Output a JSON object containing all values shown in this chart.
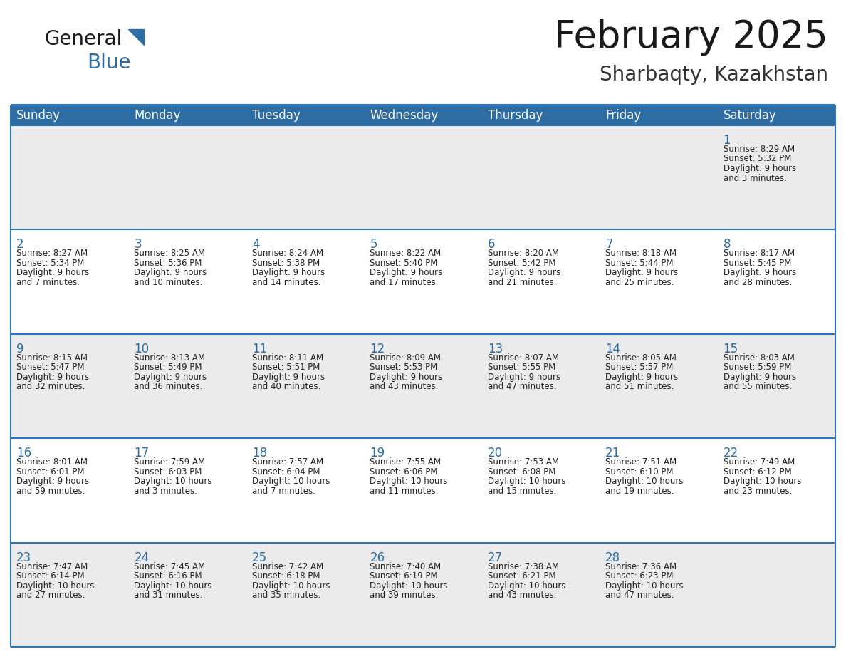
{
  "title": "February 2025",
  "subtitle": "Sharbaqty, Kazakhstan",
  "days_of_week": [
    "Sunday",
    "Monday",
    "Tuesday",
    "Wednesday",
    "Thursday",
    "Friday",
    "Saturday"
  ],
  "header_bg": "#2E6DA4",
  "header_text": "#FFFFFF",
  "cell_bg_odd": "#EBEBEB",
  "cell_bg_even": "#FFFFFF",
  "divider_color": "#2E75B6",
  "text_color": "#222222",
  "day_num_color": "#2E6DA4",
  "calendar_data": [
    [
      null,
      null,
      null,
      null,
      null,
      null,
      {
        "day": 1,
        "sunrise": "8:29 AM",
        "sunset": "5:32 PM",
        "daylight": "9 hours and 3 minutes."
      }
    ],
    [
      {
        "day": 2,
        "sunrise": "8:27 AM",
        "sunset": "5:34 PM",
        "daylight": "9 hours and 7 minutes."
      },
      {
        "day": 3,
        "sunrise": "8:25 AM",
        "sunset": "5:36 PM",
        "daylight": "9 hours and 10 minutes."
      },
      {
        "day": 4,
        "sunrise": "8:24 AM",
        "sunset": "5:38 PM",
        "daylight": "9 hours and 14 minutes."
      },
      {
        "day": 5,
        "sunrise": "8:22 AM",
        "sunset": "5:40 PM",
        "daylight": "9 hours and 17 minutes."
      },
      {
        "day": 6,
        "sunrise": "8:20 AM",
        "sunset": "5:42 PM",
        "daylight": "9 hours and 21 minutes."
      },
      {
        "day": 7,
        "sunrise": "8:18 AM",
        "sunset": "5:44 PM",
        "daylight": "9 hours and 25 minutes."
      },
      {
        "day": 8,
        "sunrise": "8:17 AM",
        "sunset": "5:45 PM",
        "daylight": "9 hours and 28 minutes."
      }
    ],
    [
      {
        "day": 9,
        "sunrise": "8:15 AM",
        "sunset": "5:47 PM",
        "daylight": "9 hours and 32 minutes."
      },
      {
        "day": 10,
        "sunrise": "8:13 AM",
        "sunset": "5:49 PM",
        "daylight": "9 hours and 36 minutes."
      },
      {
        "day": 11,
        "sunrise": "8:11 AM",
        "sunset": "5:51 PM",
        "daylight": "9 hours and 40 minutes."
      },
      {
        "day": 12,
        "sunrise": "8:09 AM",
        "sunset": "5:53 PM",
        "daylight": "9 hours and 43 minutes."
      },
      {
        "day": 13,
        "sunrise": "8:07 AM",
        "sunset": "5:55 PM",
        "daylight": "9 hours and 47 minutes."
      },
      {
        "day": 14,
        "sunrise": "8:05 AM",
        "sunset": "5:57 PM",
        "daylight": "9 hours and 51 minutes."
      },
      {
        "day": 15,
        "sunrise": "8:03 AM",
        "sunset": "5:59 PM",
        "daylight": "9 hours and 55 minutes."
      }
    ],
    [
      {
        "day": 16,
        "sunrise": "8:01 AM",
        "sunset": "6:01 PM",
        "daylight": "9 hours and 59 minutes."
      },
      {
        "day": 17,
        "sunrise": "7:59 AM",
        "sunset": "6:03 PM",
        "daylight": "10 hours and 3 minutes."
      },
      {
        "day": 18,
        "sunrise": "7:57 AM",
        "sunset": "6:04 PM",
        "daylight": "10 hours and 7 minutes."
      },
      {
        "day": 19,
        "sunrise": "7:55 AM",
        "sunset": "6:06 PM",
        "daylight": "10 hours and 11 minutes."
      },
      {
        "day": 20,
        "sunrise": "7:53 AM",
        "sunset": "6:08 PM",
        "daylight": "10 hours and 15 minutes."
      },
      {
        "day": 21,
        "sunrise": "7:51 AM",
        "sunset": "6:10 PM",
        "daylight": "10 hours and 19 minutes."
      },
      {
        "day": 22,
        "sunrise": "7:49 AM",
        "sunset": "6:12 PM",
        "daylight": "10 hours and 23 minutes."
      }
    ],
    [
      {
        "day": 23,
        "sunrise": "7:47 AM",
        "sunset": "6:14 PM",
        "daylight": "10 hours and 27 minutes."
      },
      {
        "day": 24,
        "sunrise": "7:45 AM",
        "sunset": "6:16 PM",
        "daylight": "10 hours and 31 minutes."
      },
      {
        "day": 25,
        "sunrise": "7:42 AM",
        "sunset": "6:18 PM",
        "daylight": "10 hours and 35 minutes."
      },
      {
        "day": 26,
        "sunrise": "7:40 AM",
        "sunset": "6:19 PM",
        "daylight": "10 hours and 39 minutes."
      },
      {
        "day": 27,
        "sunrise": "7:38 AM",
        "sunset": "6:21 PM",
        "daylight": "10 hours and 43 minutes."
      },
      {
        "day": 28,
        "sunrise": "7:36 AM",
        "sunset": "6:23 PM",
        "daylight": "10 hours and 47 minutes."
      },
      null
    ]
  ],
  "title_fontsize": 38,
  "subtitle_fontsize": 20,
  "header_fontsize": 12,
  "day_num_fontsize": 12,
  "cell_text_fontsize": 8.5,
  "logo_general_fontsize": 20,
  "logo_blue_fontsize": 20
}
